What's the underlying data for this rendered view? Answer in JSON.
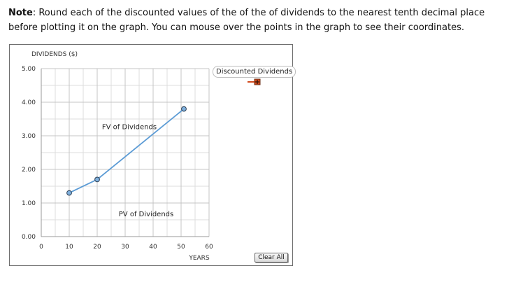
{
  "note": {
    "label": "Note",
    "text": ": Round each of the discounted values of the of the of dividends to the nearest tenth decimal place before plotting it on the graph. You can mouse over the points in the graph to see their coordinates."
  },
  "legend": {
    "label": "Discounted Dividends",
    "marker_color": "#d24a1c"
  },
  "buttons": {
    "clear_all": "Clear All"
  },
  "chart_data": {
    "type": "line",
    "ylabel": "DIVIDENDS ($)",
    "xlabel": "YEARS",
    "xlim": [
      0,
      60
    ],
    "ylim": [
      0,
      5
    ],
    "x_ticks": [
      "0",
      "10",
      "20",
      "30",
      "40",
      "50",
      "60"
    ],
    "y_ticks": [
      "0.00",
      "1.00",
      "2.00",
      "3.00",
      "4.00",
      "5.00"
    ],
    "grid": true,
    "series": [
      {
        "x": [
          10,
          20,
          51
        ],
        "y": [
          1.3,
          1.7,
          3.8
        ],
        "color": "#5b9bd5",
        "marker_fill": "#7fb0dd"
      }
    ],
    "annotations": [
      {
        "text": "FV of Dividends",
        "x": 31.5,
        "y": 3.2
      },
      {
        "text": "PV of Dividends",
        "x": 37.5,
        "y": 0.6
      }
    ]
  }
}
